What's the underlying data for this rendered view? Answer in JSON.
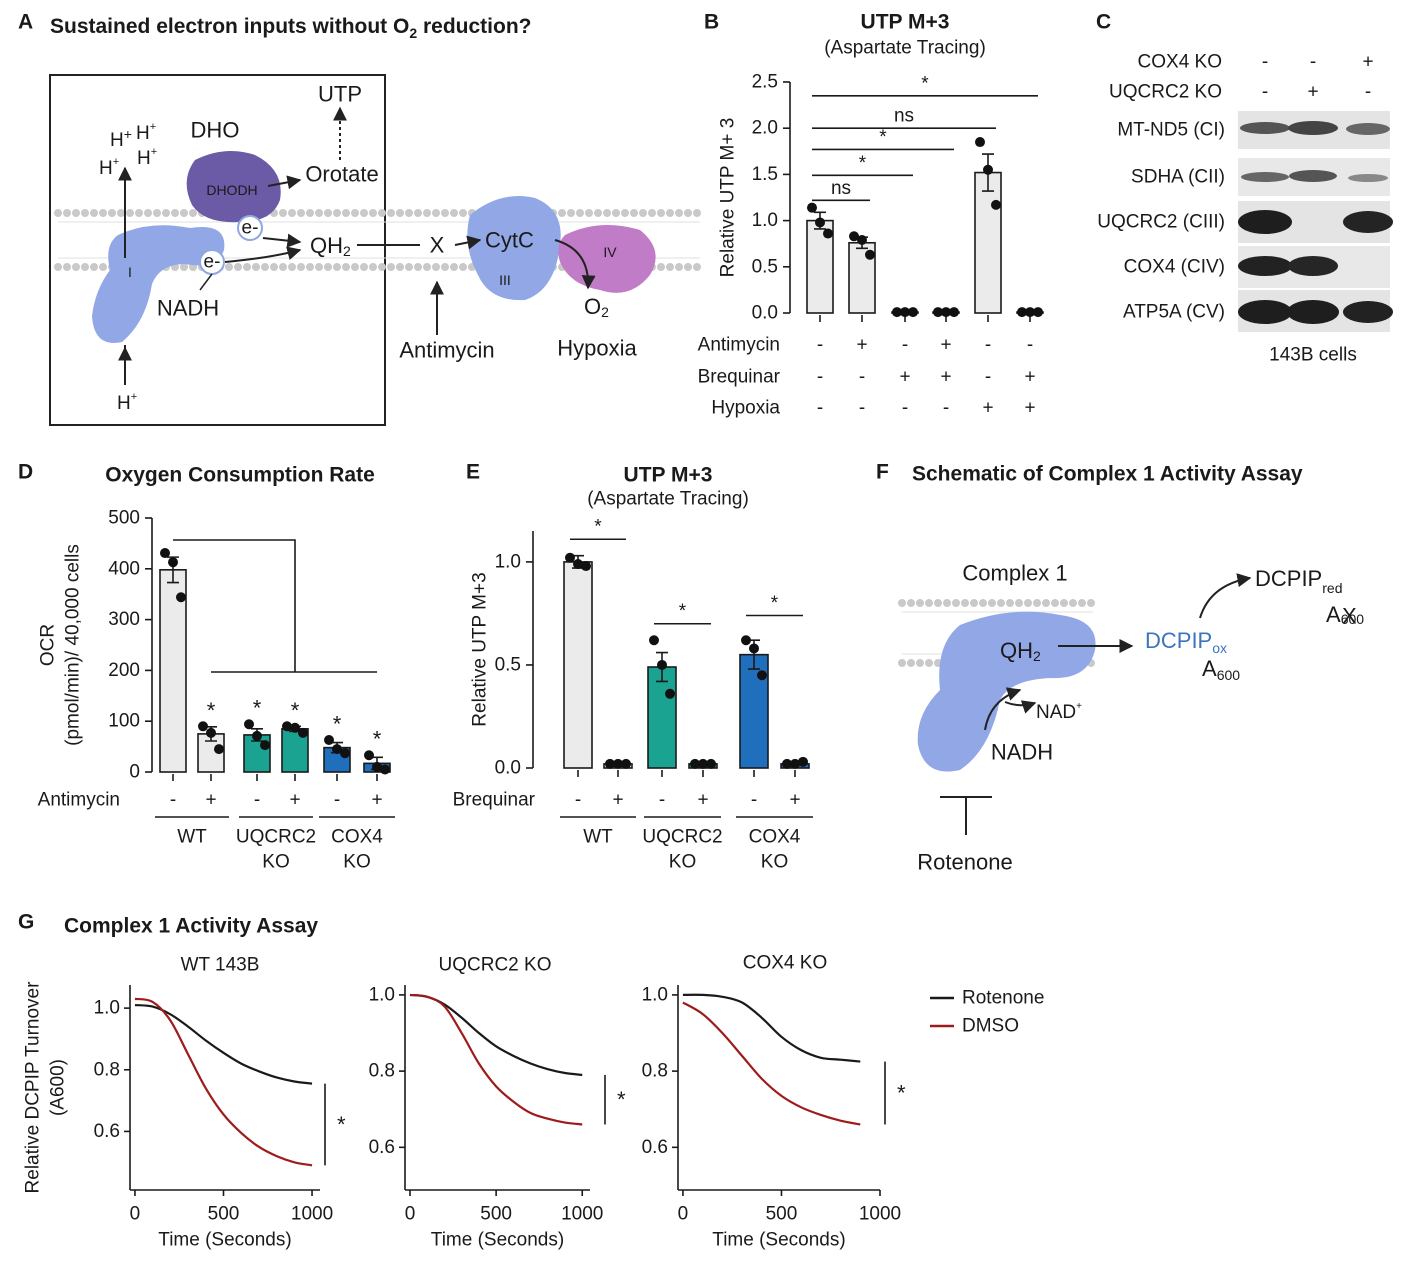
{
  "panel_labels": [
    "A",
    "B",
    "C",
    "D",
    "E",
    "F",
    "G"
  ],
  "panel_a": {
    "title": [
      "Sustained electron inputs without O",
      "2",
      " reduction?"
    ],
    "utp": "UTP",
    "dho": "DHO",
    "dhodh": "DHODH",
    "orotate": "Orotate",
    "electrons": [
      "e-",
      "e-"
    ],
    "qh2": [
      "QH",
      "2"
    ],
    "x": "X",
    "cytc": "CytC",
    "complex_iii": "III",
    "complex_iv": "IV",
    "complex_i": "I",
    "nadh": "NADH",
    "o2": [
      "O",
      "2"
    ],
    "antimycin": "Antimycin",
    "hypoxia": "Hypoxia",
    "protons": [
      [
        "H",
        "+"
      ],
      [
        "H",
        "+"
      ],
      [
        "H",
        "+"
      ],
      [
        "H",
        "+"
      ],
      [
        "H",
        "+"
      ]
    ]
  },
  "panel_c": {
    "conditions": [
      {
        "name": "COX4 KO",
        "signs": [
          "-",
          "-",
          "+"
        ]
      },
      {
        "name": "UQCRC2 KO",
        "signs": [
          "-",
          "+",
          "-"
        ]
      }
    ],
    "rows": [
      "MT-ND5 (CI)",
      "SDHA (CII)",
      "UQCRC2 (CIII)",
      "COX4 (CIV)",
      "ATP5A (CV)"
    ],
    "caption": "143B cells"
  },
  "panel_f": {
    "title": "Schematic of Complex 1 Activity Assay",
    "complex": "Complex 1",
    "qh2": [
      "QH",
      "2"
    ],
    "dcpip_ox": [
      "DCPIP",
      "ox"
    ],
    "a600_ox": [
      "A",
      "600"
    ],
    "dcpip_red": [
      "DCPIP",
      "red"
    ],
    "a600_red": [
      "A",
      "600"
    ],
    "cross": "X",
    "nad": [
      "NAD",
      "+"
    ],
    "nadh": "NADH",
    "rotenone": "Rotenone"
  },
  "panel_g": {
    "title": "Complex 1 Activity Assay"
  },
  "chart_data": [
    {
      "type": "bar",
      "title": "UTP M+3",
      "subtitle": "(Aspartate Tracing)",
      "y_label": [
        "Relative UTP M+ 3"
      ],
      "ylim": [
        0,
        2.5
      ],
      "yticks": [
        {
          "value": 0,
          "label": "0.0"
        },
        0.5,
        {
          "value": 1,
          "label": "1.0"
        },
        1.5,
        {
          "value": 2,
          "label": "2.0"
        },
        2.5
      ],
      "color": "#ebebeb",
      "values": [
        1.0,
        0.76,
        0.01,
        0.01,
        1.52,
        0.01
      ],
      "errors": [
        0.09,
        0.06,
        0,
        0,
        0.2,
        0
      ],
      "points": [
        [
          1.14,
          0.98,
          0.86
        ],
        [
          0.83,
          0.79,
          0.63
        ],
        [
          0.01,
          0.01,
          0.01
        ],
        [
          0.01,
          0.01,
          0.01
        ],
        [
          1.85,
          1.55,
          1.17
        ],
        [
          0.01,
          0.01,
          0.01
        ]
      ],
      "conditions": [
        {
          "name": "Antimycin",
          "signs": [
            "-",
            "+",
            "-",
            "+",
            "-",
            "-"
          ]
        },
        {
          "name": "Brequinar",
          "signs": [
            "-",
            "-",
            "+",
            "+",
            "-",
            "+"
          ]
        },
        {
          "name": "Hypoxia",
          "signs": [
            "-",
            "-",
            "-",
            "-",
            "+",
            "+"
          ]
        }
      ],
      "brackets": [
        {
          "text": "ns",
          "from": 0,
          "to": 1,
          "y": 1.22
        },
        {
          "text": "*",
          "from": 0,
          "to": 2,
          "y": 1.49
        },
        {
          "text": "*",
          "from": 0,
          "to": 3,
          "y": 1.77
        },
        {
          "text": "ns",
          "from": 0,
          "to": 4,
          "y": 2.0
        },
        {
          "text": "*",
          "from": 0,
          "to": 5,
          "y": 2.35
        }
      ]
    },
    {
      "type": "bar",
      "title": "Oxygen Consumption Rate",
      "y_label": [
        "OCR",
        "(pmol/min)/ 40,000 cells"
      ],
      "ylim": [
        0,
        500
      ],
      "yticks": [
        0,
        100,
        200,
        300,
        400,
        500
      ],
      "colors": [
        "#ebebeb",
        "#ebebeb",
        "#1aa391",
        "#1aa391",
        "#1f6fbd",
        "#1f6fbd"
      ],
      "values": [
        398,
        75,
        73,
        85,
        48,
        17
      ],
      "errors": [
        25,
        14,
        12,
        5,
        10,
        12
      ],
      "points": [
        [
          431,
          413,
          344
        ],
        [
          90,
          77,
          45
        ],
        [
          94,
          71,
          53
        ],
        [
          90,
          87,
          77
        ],
        [
          63,
          45,
          37
        ],
        [
          33,
          10,
          5
        ]
      ],
      "markers": [
        null,
        "*",
        "*",
        "*",
        "*",
        "*"
      ],
      "conditions": [
        {
          "name": "Antimycin",
          "signs": [
            "-",
            "+",
            "-",
            "+",
            "-",
            "+"
          ]
        }
      ],
      "groups": [
        [
          "WT"
        ],
        [
          "UQCRC2",
          "KO"
        ],
        [
          "COX4",
          "KO"
        ]
      ]
    },
    {
      "type": "bar",
      "title": "UTP M+3",
      "subtitle": "(Aspartate Tracing)",
      "y_label": [
        "Relative UTP M+3"
      ],
      "ylim": [
        0,
        1.15
      ],
      "yticks": [
        {
          "value": 0,
          "label": "0.0"
        },
        0.5,
        {
          "value": 1,
          "label": "1.0"
        }
      ],
      "colors": [
        "#ebebeb",
        "#ebebeb",
        "#1aa391",
        "#1aa391",
        "#1f6fbd",
        "#1f6fbd"
      ],
      "values": [
        1.0,
        0.02,
        0.49,
        0.02,
        0.55,
        0.02
      ],
      "errors": [
        0.03,
        0.005,
        0.07,
        0.005,
        0.07,
        0.005
      ],
      "points": [
        [
          1.02,
          0.99,
          0.98
        ],
        [
          0.02,
          0.02,
          0.02
        ],
        [
          0.62,
          0.5,
          0.36
        ],
        [
          0.02,
          0.02,
          0.02
        ],
        [
          0.62,
          0.58,
          0.45
        ],
        [
          0.02,
          0.02,
          0.03
        ]
      ],
      "conditions": [
        {
          "name": "Brequinar",
          "signs": [
            "-",
            "+",
            "-",
            "+",
            "-",
            "+"
          ]
        }
      ],
      "groups": [
        [
          "WT"
        ],
        [
          "UQCRC2",
          "KO"
        ],
        [
          "COX4",
          "KO"
        ]
      ],
      "brackets": [
        {
          "text": "*",
          "from": 0,
          "to": 1,
          "y": 1.11
        },
        {
          "text": "*",
          "from": 2,
          "to": 3,
          "y": 0.7
        },
        {
          "text": "*",
          "from": 4,
          "to": 5,
          "y": 0.74
        }
      ]
    },
    {
      "type": "line",
      "title": "WT 143B",
      "y_label": [
        "Relative DCPIP Turnover",
        "(A600)"
      ],
      "x_label": "Time (Seconds)",
      "xlim": [
        -28,
        1045
      ],
      "ylim": [
        0.41,
        1.075
      ],
      "xticks": [
        0,
        500,
        1000
      ],
      "yticks": [
        0.6,
        0.8,
        {
          "value": 1,
          "label": "1.0"
        }
      ],
      "x": [
        0,
        100,
        200,
        300,
        400,
        500,
        600,
        700,
        800,
        900,
        1000
      ],
      "series": [
        {
          "color": "#1a1a1a",
          "values": [
            1.01,
            1.005,
            0.98,
            0.94,
            0.895,
            0.855,
            0.82,
            0.795,
            0.775,
            0.762,
            0.755
          ]
        },
        {
          "color": "#9e1b1b",
          "values": [
            1.03,
            1.02,
            0.96,
            0.85,
            0.74,
            0.655,
            0.595,
            0.55,
            0.52,
            0.5,
            0.49
          ]
        }
      ],
      "significance": "*"
    },
    {
      "type": "line",
      "title": "UQCRC2 KO",
      "x_label": "Time (Seconds)",
      "xlim": [
        -29,
        1045
      ],
      "ylim": [
        0.488,
        1.026
      ],
      "xticks": [
        0,
        500,
        1000
      ],
      "yticks": [
        0.6,
        0.8,
        {
          "value": 1,
          "label": "1.0"
        }
      ],
      "x": [
        0,
        100,
        200,
        300,
        400,
        500,
        600,
        700,
        800,
        900,
        1000
      ],
      "series": [
        {
          "color": "#1a1a1a",
          "values": [
            1.0,
            0.995,
            0.975,
            0.94,
            0.9,
            0.865,
            0.84,
            0.82,
            0.805,
            0.795,
            0.79
          ]
        },
        {
          "color": "#9e1b1b",
          "values": [
            1.0,
            0.995,
            0.97,
            0.9,
            0.82,
            0.76,
            0.72,
            0.69,
            0.675,
            0.665,
            0.66
          ]
        }
      ],
      "significance": "*"
    },
    {
      "type": "line",
      "title": "COX4 KO",
      "x_label": "Time (Seconds)",
      "xlim": [
        -25,
        1000
      ],
      "ylim": [
        0.488,
        1.026
      ],
      "xticks": [
        0,
        500,
        1000
      ],
      "yticks": [
        0.6,
        0.8,
        {
          "value": 1,
          "label": "1.0"
        }
      ],
      "x": [
        0,
        100,
        200,
        300,
        400,
        500,
        600,
        700,
        800,
        900
      ],
      "series": [
        {
          "name": "Rotenone",
          "color": "#1a1a1a",
          "values": [
            1.0,
            1.0,
            0.995,
            0.98,
            0.94,
            0.89,
            0.855,
            0.835,
            0.83,
            0.825
          ]
        },
        {
          "name": "DMSO",
          "color": "#9e1b1b",
          "values": [
            0.98,
            0.95,
            0.9,
            0.84,
            0.78,
            0.735,
            0.705,
            0.685,
            0.67,
            0.66
          ]
        }
      ],
      "significance": "*"
    }
  ]
}
